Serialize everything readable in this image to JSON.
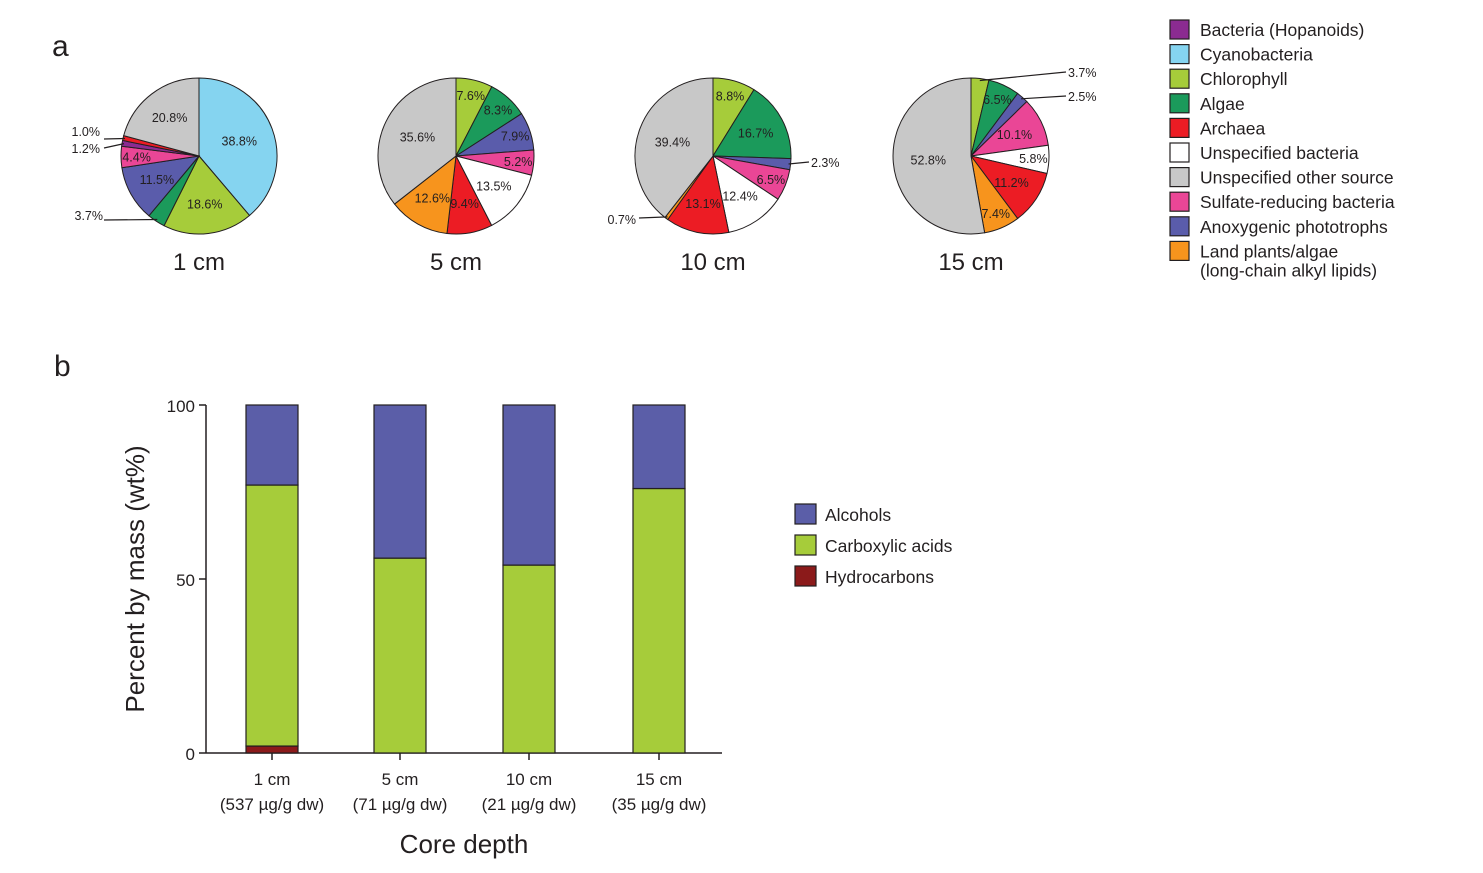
{
  "panel_labels": {
    "a": "a",
    "b": "b"
  },
  "chart_data": [
    {
      "type": "pie",
      "panel": "a",
      "legend": [
        {
          "name": "Bacteria (Hopanoids)",
          "color": "#8b2b91"
        },
        {
          "name": "Cyanobacteria",
          "color": "#85d4f0"
        },
        {
          "name": "Chlorophyll",
          "color": "#a6cc3a"
        },
        {
          "name": "Algae",
          "color": "#1b9a5b"
        },
        {
          "name": "Archaea",
          "color": "#ec1c24"
        },
        {
          "name": "Unspecified bacteria",
          "color": "#ffffff"
        },
        {
          "name": "Unspecified other source",
          "color": "#c8c8c8"
        },
        {
          "name": "Sulfate-reducing bacteria",
          "color": "#ea4696"
        },
        {
          "name": "Anoxygenic phototrophs",
          "color": "#5a5cab"
        },
        {
          "name": "Land plants/algae",
          "name_line2": "(long-chain alkyl lipids)",
          "color": "#f7941d"
        }
      ],
      "pies": [
        {
          "caption": "1 cm",
          "slices": [
            {
              "source": "Cyanobacteria",
              "value": 38.8,
              "label": "38.8%"
            },
            {
              "source": "Chlorophyll",
              "value": 18.6,
              "label": "18.6%"
            },
            {
              "source": "Algae",
              "value": 3.7,
              "label": "3.7%",
              "leader": true
            },
            {
              "source": "Anoxygenic phototrophs",
              "value": 11.5,
              "label": "11.5%"
            },
            {
              "source": "Sulfate-reducing bacteria",
              "value": 4.4,
              "label": "4.4%"
            },
            {
              "source": "Bacteria (Hopanoids)",
              "value": 1.2,
              "label": "1.2%",
              "leader": true
            },
            {
              "source": "Archaea",
              "value": 1.0,
              "label": "1.0%",
              "leader": true
            },
            {
              "source": "Unspecified other source",
              "value": 20.8,
              "label": "20.8%"
            }
          ]
        },
        {
          "caption": "5 cm",
          "slices": [
            {
              "source": "Chlorophyll",
              "value": 7.6,
              "label": "7.6%"
            },
            {
              "source": "Algae",
              "value": 8.3,
              "label": "8.3%"
            },
            {
              "source": "Anoxygenic phototrophs",
              "value": 7.9,
              "label": "7.9%"
            },
            {
              "source": "Sulfate-reducing bacteria",
              "value": 5.2,
              "label": "5.2%"
            },
            {
              "source": "Unspecified bacteria",
              "value": 13.5,
              "label": "13.5%"
            },
            {
              "source": "Archaea",
              "value": 9.4,
              "label": "9.4%"
            },
            {
              "source": "Land plants/algae",
              "value": 12.6,
              "label": "12.6%"
            },
            {
              "source": "Unspecified other source",
              "value": 35.6,
              "label": "35.6%"
            }
          ]
        },
        {
          "caption": "10 cm",
          "slices": [
            {
              "source": "Chlorophyll",
              "value": 8.8,
              "label": "8.8%"
            },
            {
              "source": "Algae",
              "value": 16.7,
              "label": "16.7%"
            },
            {
              "source": "Anoxygenic phototrophs",
              "value": 2.3,
              "label": "2.3%",
              "leader": true
            },
            {
              "source": "Sulfate-reducing bacteria",
              "value": 6.5,
              "label": "6.5%"
            },
            {
              "source": "Unspecified bacteria",
              "value": 12.4,
              "label": "12.4%"
            },
            {
              "source": "Archaea",
              "value": 13.1,
              "label": "13.1%"
            },
            {
              "source": "Land plants/algae",
              "value": 0.7,
              "label": "0.7%",
              "leader": true
            },
            {
              "source": "Unspecified other source",
              "value": 39.4,
              "label": "39.4%"
            }
          ]
        },
        {
          "caption": "15 cm",
          "slices": [
            {
              "source": "Chlorophyll",
              "value": 3.7,
              "label": "3.7%",
              "leader": true
            },
            {
              "source": "Algae",
              "value": 6.5,
              "label": "6.5%"
            },
            {
              "source": "Anoxygenic phototrophs",
              "value": 2.5,
              "label": "2.5%",
              "leader": true
            },
            {
              "source": "Sulfate-reducing bacteria",
              "value": 10.1,
              "label": "10.1%"
            },
            {
              "source": "Unspecified bacteria",
              "value": 5.8,
              "label": "5.8%"
            },
            {
              "source": "Archaea",
              "value": 11.2,
              "label": "11.2%"
            },
            {
              "source": "Land plants/algae",
              "value": 7.4,
              "label": "7.4%"
            },
            {
              "source": "Unspecified other source",
              "value": 52.8,
              "label": "52.8%"
            }
          ]
        }
      ]
    },
    {
      "type": "bar",
      "stacked": true,
      "panel": "b",
      "categories": [
        "1 cm",
        "5 cm",
        "10 cm",
        "15 cm"
      ],
      "category_sublabels": [
        "(537 µg/g dw)",
        "(71 µg/g dw)",
        "(21 µg/g dw)",
        "(35 µg/g dw)"
      ],
      "series": [
        {
          "name": "Hydrocarbons",
          "color": "#8b1a1a",
          "values": [
            2,
            0,
            0,
            0
          ]
        },
        {
          "name": "Carboxylic acids",
          "color": "#a6cc3a",
          "values": [
            75,
            56,
            54,
            76
          ]
        },
        {
          "name": "Alcohols",
          "color": "#5b5ea8",
          "values": [
            23,
            44,
            46,
            24
          ]
        }
      ],
      "legend_order": [
        "Alcohols",
        "Carboxylic acids",
        "Hydrocarbons"
      ],
      "ylim": [
        0,
        100
      ],
      "yticks": [
        0,
        50,
        100
      ],
      "xlabel": "Core depth",
      "ylabel": "Percent by mass (wt%)"
    }
  ]
}
